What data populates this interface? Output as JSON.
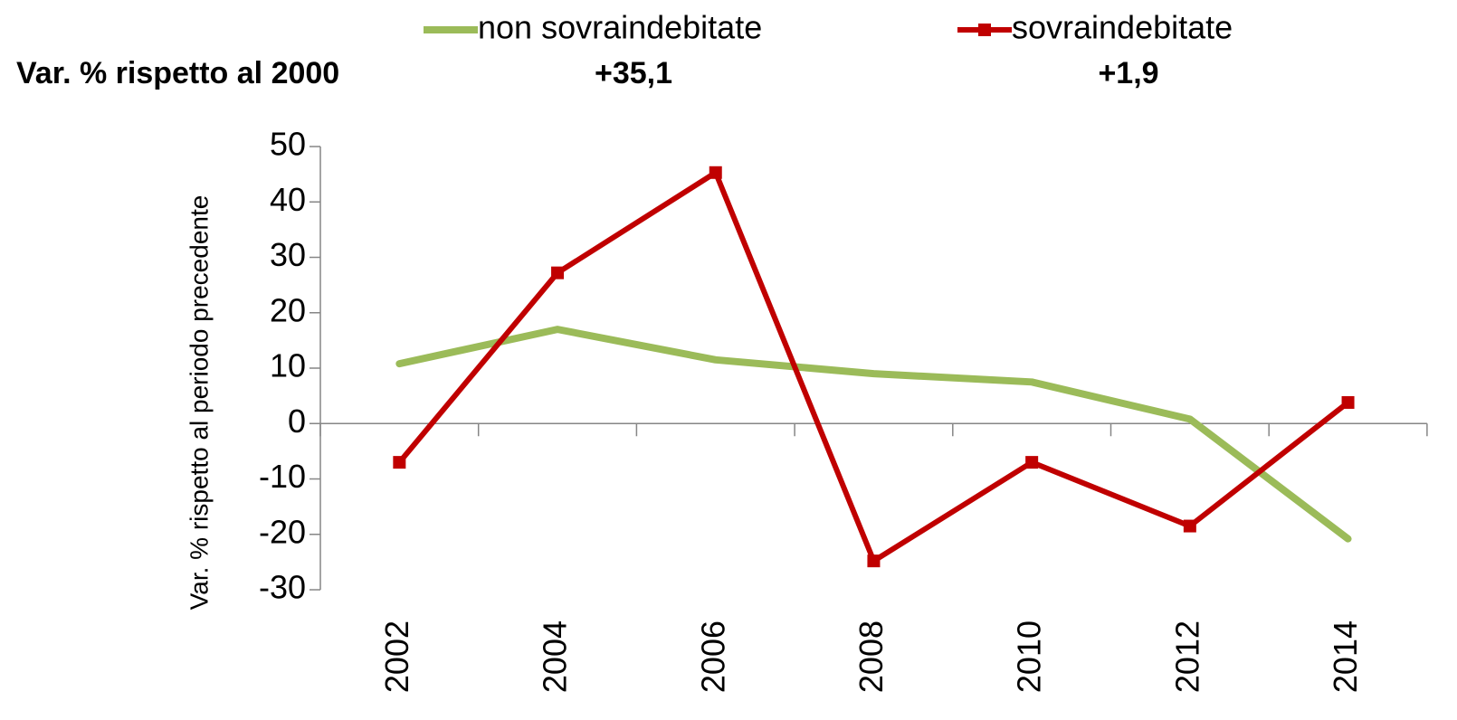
{
  "chart_data": {
    "type": "line",
    "y_label": "Var. % rispetto al periodo precedente",
    "categories": [
      "2002",
      "2004",
      "2006",
      "2008",
      "2010",
      "2012",
      "2014"
    ],
    "series": [
      {
        "name": "non sovraindebitate",
        "color": "#9bbb59",
        "values": [
          10.8,
          17,
          11.5,
          9,
          7.5,
          0.8,
          -20.8
        ]
      },
      {
        "name": "sovraindebitate",
        "color": "#c00000",
        "values": [
          -7,
          27.2,
          45.3,
          -24.8,
          -7,
          -18.5,
          3.8
        ]
      }
    ],
    "annotations": [
      {
        "text": "Var. % rispetto al 2000"
      },
      {
        "text": "+35,1",
        "color": "#4f6228"
      },
      {
        "text": "+1,9",
        "color": "#c00000"
      }
    ],
    "ylim": [
      -30,
      50
    ],
    "yticks": [
      -30,
      -20,
      -10,
      0,
      10,
      20,
      30,
      40,
      50
    ]
  }
}
